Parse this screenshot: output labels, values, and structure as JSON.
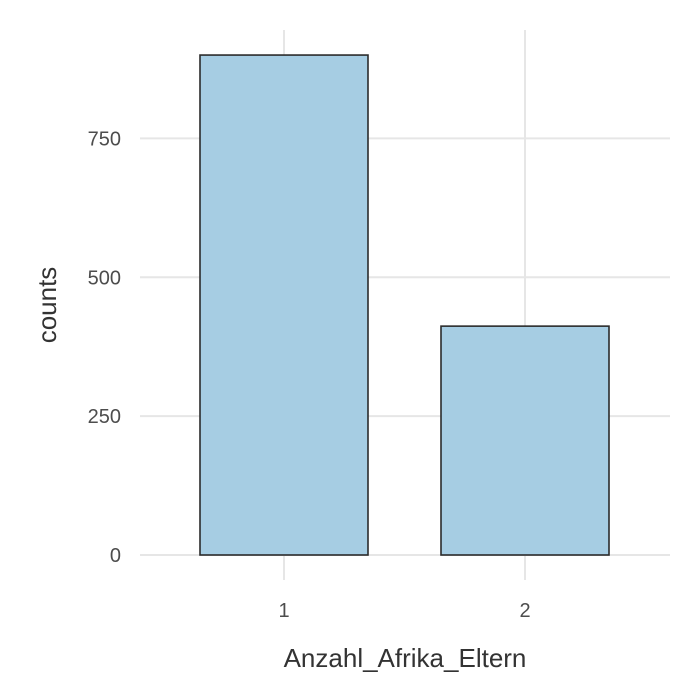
{
  "chart_data": {
    "type": "bar",
    "categories": [
      "1",
      "2"
    ],
    "values": [
      900,
      412
    ],
    "xlabel": "Anzahl_Afrika_Eltern",
    "ylabel": "counts",
    "ylim": [
      0,
      945
    ],
    "yticks": [
      0,
      250,
      500,
      750
    ],
    "yticklabels": [
      "0",
      "250",
      "500",
      "750"
    ],
    "grid": true,
    "bar_color": "#a6cde3",
    "bar_edge_color": "#2b2b2b"
  }
}
